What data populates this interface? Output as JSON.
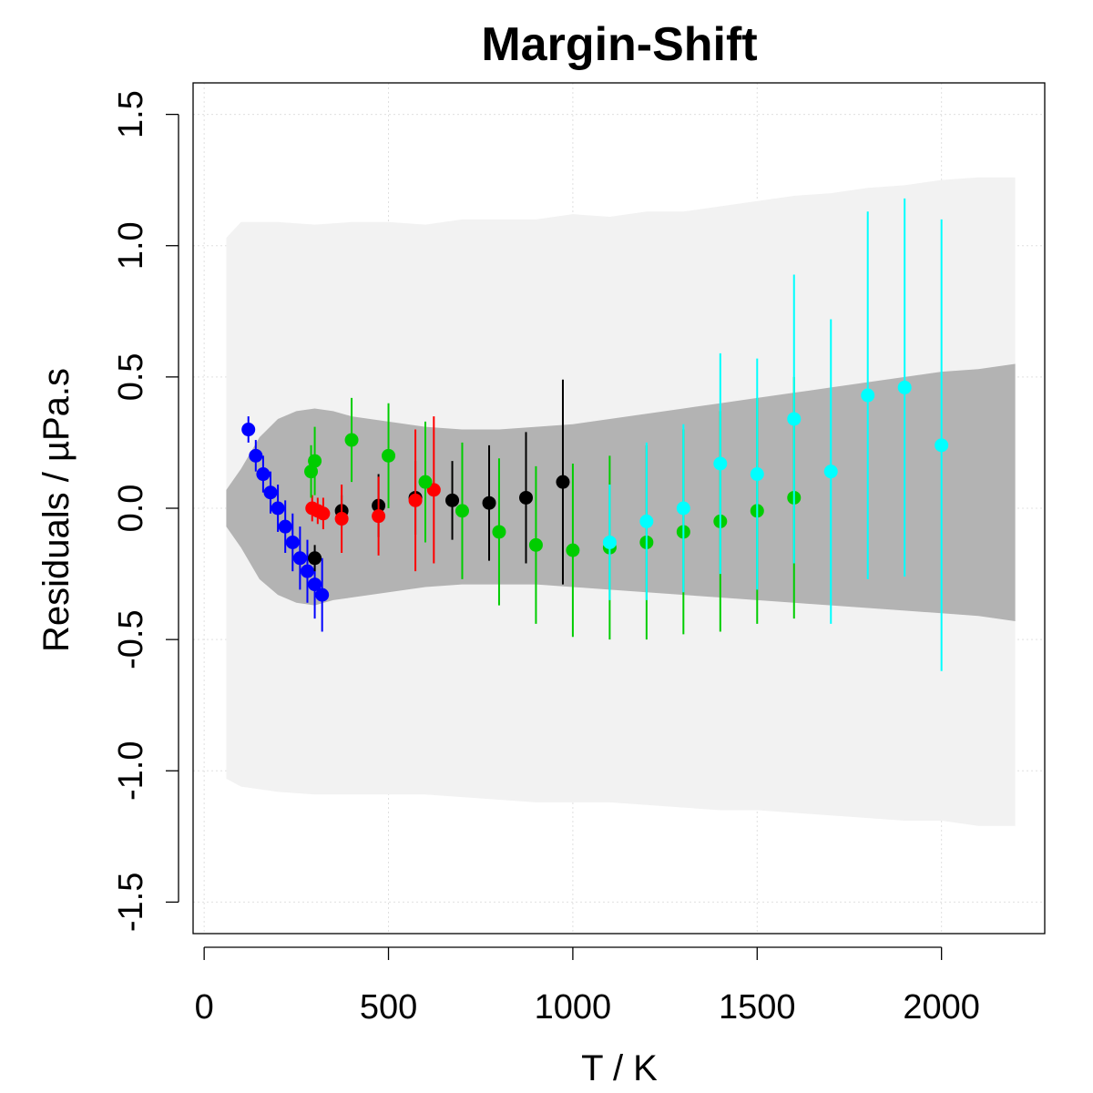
{
  "chart_data": {
    "type": "scatter",
    "title": "Margin-Shift",
    "xlabel": "T / K",
    "ylabel": "Residuals / µPa.s",
    "xlim": [
      -30,
      2280
    ],
    "ylim": [
      -1.62,
      1.62
    ],
    "x_ticks": [
      0,
      500,
      1000,
      1500,
      2000
    ],
    "x_tick_labels": [
      "0",
      "500",
      "1000",
      "1500",
      "2000"
    ],
    "y_ticks": [
      -1.5,
      -1.0,
      -0.5,
      0.0,
      0.5,
      1.0,
      1.5
    ],
    "y_tick_labels": [
      "-1.5",
      "-1.0",
      "-0.5",
      "0.0",
      "0.5",
      "1.0",
      "1.5"
    ],
    "grid": true,
    "bands": [
      {
        "name": "outer prediction band",
        "color": "#f2f2f2",
        "x": [
          60,
          100,
          200,
          300,
          400,
          500,
          600,
          700,
          800,
          900,
          1000,
          1100,
          1200,
          1300,
          1400,
          1500,
          1600,
          1700,
          1800,
          1900,
          2000,
          2100,
          2200
        ],
        "upper": [
          1.03,
          1.09,
          1.09,
          1.08,
          1.09,
          1.09,
          1.08,
          1.1,
          1.1,
          1.1,
          1.12,
          1.11,
          1.13,
          1.13,
          1.15,
          1.17,
          1.19,
          1.2,
          1.22,
          1.23,
          1.25,
          1.26,
          1.26
        ],
        "lower": [
          -1.03,
          -1.06,
          -1.08,
          -1.09,
          -1.09,
          -1.09,
          -1.09,
          -1.1,
          -1.11,
          -1.12,
          -1.12,
          -1.12,
          -1.13,
          -1.14,
          -1.15,
          -1.15,
          -1.16,
          -1.17,
          -1.18,
          -1.19,
          -1.19,
          -1.21,
          -1.21
        ]
      },
      {
        "name": "inner confidence band",
        "color": "#b3b3b3",
        "x": [
          60,
          100,
          150,
          200,
          250,
          300,
          350,
          400,
          500,
          600,
          700,
          800,
          900,
          1000,
          1100,
          1200,
          1300,
          1400,
          1500,
          1600,
          1700,
          1800,
          1900,
          2000,
          2100,
          2200
        ],
        "upper": [
          0.07,
          0.15,
          0.27,
          0.34,
          0.37,
          0.38,
          0.37,
          0.35,
          0.33,
          0.31,
          0.3,
          0.3,
          0.31,
          0.32,
          0.34,
          0.36,
          0.38,
          0.4,
          0.42,
          0.44,
          0.46,
          0.48,
          0.5,
          0.52,
          0.53,
          0.55
        ],
        "lower": [
          -0.07,
          -0.15,
          -0.27,
          -0.33,
          -0.36,
          -0.37,
          -0.35,
          -0.34,
          -0.32,
          -0.3,
          -0.29,
          -0.29,
          -0.29,
          -0.3,
          -0.31,
          -0.32,
          -0.33,
          -0.34,
          -0.35,
          -0.36,
          -0.37,
          -0.38,
          -0.39,
          -0.4,
          -0.41,
          -0.43
        ]
      }
    ],
    "series": [
      {
        "name": "series-blue",
        "color": "#0000ff",
        "x": [
          120,
          140,
          160,
          180,
          200,
          220,
          240,
          260,
          280,
          300,
          320
        ],
        "y": [
          0.3,
          0.2,
          0.13,
          0.06,
          0.0,
          -0.07,
          -0.13,
          -0.19,
          -0.24,
          -0.29,
          -0.33
        ],
        "err": [
          0.05,
          0.06,
          0.07,
          0.08,
          0.09,
          0.1,
          0.11,
          0.12,
          0.12,
          0.13,
          0.14
        ]
      },
      {
        "name": "series-black",
        "color": "#000000",
        "x": [
          300,
          373,
          473,
          573,
          673,
          773,
          873,
          973
        ],
        "y": [
          -0.19,
          -0.01,
          0.01,
          0.04,
          0.03,
          0.02,
          0.04,
          0.1
        ],
        "err": [
          0.05,
          0.06,
          0.12,
          0.14,
          0.15,
          0.22,
          0.25,
          0.39
        ]
      },
      {
        "name": "series-red",
        "color": "#ff0000",
        "x": [
          293,
          308,
          323,
          373,
          473,
          573,
          623
        ],
        "y": [
          0.0,
          -0.01,
          -0.02,
          -0.04,
          -0.03,
          0.03,
          0.07
        ],
        "err": [
          0.05,
          0.05,
          0.06,
          0.13,
          0.15,
          0.27,
          0.28
        ]
      },
      {
        "name": "series-green",
        "color": "#00cd00",
        "x": [
          290,
          300,
          400,
          500,
          600,
          700,
          800,
          900,
          1000,
          1100,
          1200,
          1300,
          1400,
          1500,
          1600
        ],
        "y": [
          0.14,
          0.18,
          0.26,
          0.2,
          0.1,
          -0.01,
          -0.09,
          -0.14,
          -0.16,
          -0.15,
          -0.13,
          -0.09,
          -0.05,
          -0.01,
          0.04
        ],
        "err": [
          0.1,
          0.13,
          0.16,
          0.2,
          0.23,
          0.26,
          0.28,
          0.3,
          0.33,
          0.35,
          0.37,
          0.39,
          0.42,
          0.43,
          0.46
        ]
      },
      {
        "name": "series-cyan",
        "color": "#00ffff",
        "x": [
          1100,
          1200,
          1300,
          1400,
          1500,
          1600,
          1700,
          1800,
          1900,
          2000
        ],
        "y": [
          -0.13,
          -0.05,
          0.0,
          0.17,
          0.13,
          0.34,
          0.14,
          0.43,
          0.46,
          0.24
        ],
        "err": [
          0.22,
          0.3,
          0.32,
          0.42,
          0.44,
          0.55,
          0.58,
          0.7,
          0.72,
          0.86
        ]
      }
    ]
  }
}
